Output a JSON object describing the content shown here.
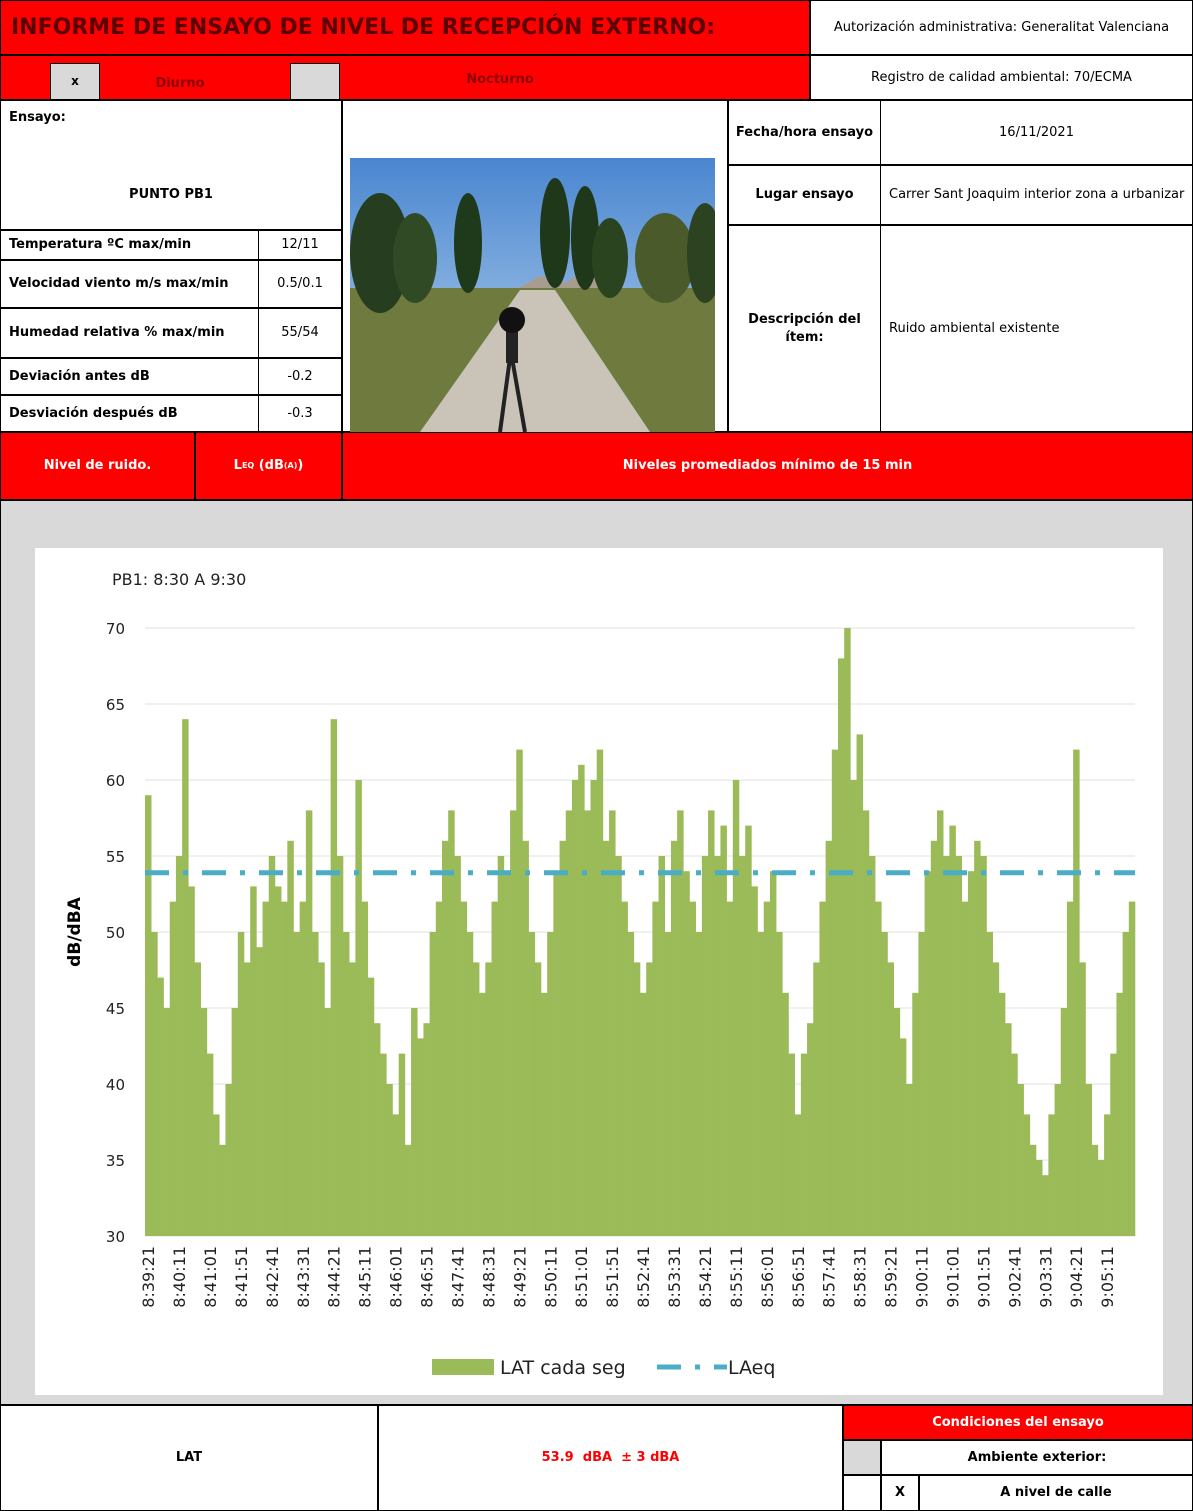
{
  "header": {
    "title": "INFORME DE ENSAYO DE NIVEL DE RECEPCIÓN EXTERNO:",
    "authorization": "Autorización administrativa: Generalitat Valenciana",
    "registry": "Registro de calidad ambiental:  70/ECMA",
    "day_mark": "x",
    "day": "Diurno",
    "night": "Nocturno"
  },
  "test": {
    "label": "Ensayo:",
    "point": "PUNTO PB1"
  },
  "conditions": [
    [
      "Temperatura ºC max/min",
      "12/11"
    ],
    [
      "Velocidad viento  m/s max/min",
      "0.5/0.1"
    ],
    [
      "Humedad relativa  % max/min",
      "55/54"
    ],
    [
      "Deviación antes dB",
      "-0.2"
    ],
    [
      "Desviación después dB",
      "-0.3"
    ]
  ],
  "details": {
    "date_label": "Fecha/hora ensayo",
    "date": "16/11/2021",
    "place_label": "Lugar ensayo",
    "place": "Carrer Sant Joaquim interior zona a urbanizar",
    "desc_label": "Descripción del ítem:",
    "desc": "Ruido ambiental existente"
  },
  "band": {
    "noise": "Nivel de ruido.",
    "leq": {
      "symbol": "L",
      "symbol_sub": "EQ",
      "unit": " (dB",
      "unit_sub": "(A)",
      "unit_end": ")"
    },
    "averaged": "Niveles promediados mínimo de 15 min"
  },
  "chart_data": {
    "type": "bar",
    "title": "PB1: 8:30  A 9:30",
    "y_label": "dB/dBA",
    "ylim": [
      30,
      70
    ],
    "yticks": [
      30,
      35,
      40,
      45,
      50,
      55,
      60,
      65,
      70
    ],
    "grid": true,
    "legend": "bottom",
    "categories": [
      "8:39:21",
      null,
      null,
      null,
      null,
      "8:40:11",
      null,
      null,
      null,
      null,
      "8:41:01",
      null,
      null,
      null,
      null,
      "8:41:51",
      null,
      null,
      null,
      null,
      "8:42:41",
      null,
      null,
      null,
      null,
      "8:43:31",
      null,
      null,
      null,
      null,
      "8:44:21",
      null,
      null,
      null,
      null,
      "8:45:11",
      null,
      null,
      null,
      null,
      "8:46:01",
      null,
      null,
      null,
      null,
      "8:46:51",
      null,
      null,
      null,
      null,
      "8:47:41",
      null,
      null,
      null,
      null,
      "8:48:31",
      null,
      null,
      null,
      null,
      "8:49:21",
      null,
      null,
      null,
      null,
      "8:50:11",
      null,
      null,
      null,
      null,
      "8:51:01",
      null,
      null,
      null,
      null,
      "8:51:51",
      null,
      null,
      null,
      null,
      "8:52:41",
      null,
      null,
      null,
      null,
      "8:53:31",
      null,
      null,
      null,
      null,
      "8:54:21",
      null,
      null,
      null,
      null,
      "8:55:11",
      null,
      null,
      null,
      null,
      "8:56:01",
      null,
      null,
      null,
      null,
      "8:56:51",
      null,
      null,
      null,
      null,
      "8:57:41",
      null,
      null,
      null,
      null,
      "8:58:31",
      null,
      null,
      null,
      null,
      "8:59:21",
      null,
      null,
      null,
      null,
      "9:00:11",
      null,
      null,
      null,
      null,
      "9:01:01",
      null,
      null,
      null,
      null,
      "9:01:51",
      null,
      null,
      null,
      null,
      "9:02:41",
      null,
      null,
      null,
      null,
      "9:03:31",
      null,
      null,
      null,
      null,
      "9:04:21",
      null,
      null,
      null,
      null,
      "9:05:11",
      null,
      null,
      null,
      null
    ],
    "series": [
      {
        "name": "LAT cada seg",
        "color": "#9bbb59",
        "values": [
          59,
          50,
          47,
          45,
          52,
          55,
          64,
          53,
          48,
          45,
          42,
          38,
          36,
          40,
          45,
          50,
          48,
          53,
          49,
          52,
          55,
          53,
          52,
          56,
          50,
          52,
          58,
          50,
          48,
          45,
          64,
          55,
          50,
          48,
          60,
          52,
          47,
          44,
          42,
          40,
          38,
          42,
          36,
          45,
          43,
          44,
          50,
          52,
          56,
          58,
          55,
          52,
          50,
          48,
          46,
          48,
          52,
          55,
          54,
          58,
          62,
          56,
          50,
          48,
          46,
          50,
          54,
          56,
          58,
          60,
          61,
          58,
          60,
          62,
          56,
          58,
          55,
          52,
          50,
          48,
          46,
          48,
          52,
          55,
          50,
          56,
          58,
          54,
          52,
          50,
          55,
          58,
          55,
          57,
          52,
          60,
          55,
          57,
          53,
          50,
          52,
          54,
          50,
          46,
          42,
          38,
          42,
          44,
          48,
          52,
          56,
          62,
          68,
          70,
          60,
          63,
          58,
          55,
          52,
          50,
          48,
          45,
          43,
          40,
          46,
          50,
          54,
          56,
          58,
          55,
          57,
          55,
          52,
          54,
          56,
          55,
          50,
          48,
          46,
          44,
          42,
          40,
          38,
          36,
          35,
          34,
          38,
          40,
          45,
          52,
          62,
          48,
          40,
          36,
          35,
          38,
          42,
          46,
          50,
          52
        ]
      },
      {
        "name": "LAeq",
        "color": "#4bacc6",
        "value": 53.9
      }
    ]
  },
  "footer": {
    "lat": "LAT",
    "result": "53.9  dBA  ± 3 dBA",
    "conditions_title": "Condiciones del ensayo",
    "outdoor": "Ambiente exterior:",
    "street_mark": "X",
    "street": "A nivel de calle"
  }
}
